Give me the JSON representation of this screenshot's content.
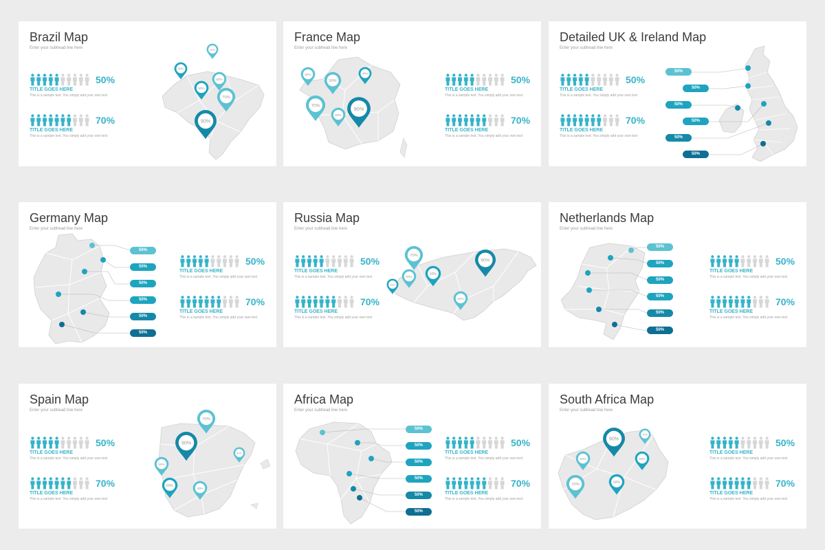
{
  "colors": {
    "teal": "#36b3c9",
    "pale": "#5cc2d2",
    "mid": "#1ea4bf",
    "deep": "#1589a7",
    "dark": "#0e6f92",
    "gray": "#d7d7d7",
    "land": "#e9e9e9"
  },
  "common": {
    "subhead": "Enter your subhead line here",
    "stat_title": "TITLE GOES HERE",
    "stat_text": "This is a sample text. You simply add your own text",
    "pct_top": "50%",
    "pct_bottom": "70%",
    "pill_label": "50%"
  },
  "slides": [
    {
      "title": "Brazil Map",
      "layout": "pins",
      "pins": [
        "20%",
        "30%",
        "50%",
        "60%",
        "70%",
        "90%"
      ]
    },
    {
      "title": "France Map",
      "layout": "pins",
      "pins": [
        "50%",
        "50%",
        "40%",
        "70%",
        "20%",
        "90%"
      ]
    },
    {
      "title": "Detailed UK & Ireland Map",
      "layout": "pills"
    },
    {
      "title": "Germany Map",
      "layout": "pills"
    },
    {
      "title": "Russia Map",
      "layout": "pins",
      "pins": [
        "70%",
        "60%",
        "50%",
        "40%",
        "20%",
        "90%"
      ]
    },
    {
      "title": "Netherlands Map",
      "layout": "pills"
    },
    {
      "title": "Spain Map",
      "layout": "pins",
      "pins": [
        "70%",
        "90%",
        "20%",
        "50%",
        "60%",
        "30%"
      ]
    },
    {
      "title": "Africa Map",
      "layout": "pills"
    },
    {
      "title": "South Africa Map",
      "layout": "pins",
      "pins": [
        "70%",
        "90%",
        "50%",
        "50%",
        "60%",
        "70%"
      ]
    }
  ]
}
